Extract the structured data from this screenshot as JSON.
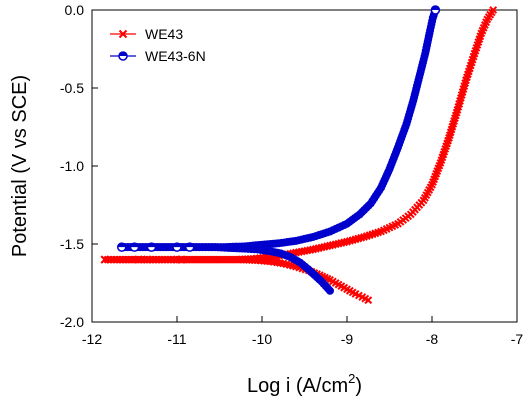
{
  "chart_data": {
    "type": "line",
    "xlabel": "Log i (A/cm",
    "xlabel_sup": "2",
    "xlabel_close": ")",
    "ylabel": "Potential (V vs SCE)",
    "xlim": [
      -12,
      -7
    ],
    "ylim": [
      -2.0,
      0.0
    ],
    "xticks": [
      -12,
      -11,
      -10,
      -9,
      -8,
      -7
    ],
    "yticks": [
      0.0,
      -0.5,
      -1.0,
      -1.5,
      -2.0
    ],
    "xtick_labels": [
      "-12",
      "-11",
      "-10",
      "-9",
      "-8",
      "-7"
    ],
    "ytick_labels": [
      "0.0",
      "-0.5",
      "-1.0",
      "-1.5",
      "-2.0"
    ],
    "legend_position": "top-left",
    "series": [
      {
        "name": "WE43",
        "color": "#ff0000",
        "marker": "x",
        "points": [
          [
            -8.75,
            -1.86
          ],
          [
            -8.82,
            -1.84
          ],
          [
            -8.9,
            -1.82
          ],
          [
            -9.0,
            -1.79
          ],
          [
            -9.1,
            -1.76
          ],
          [
            -9.2,
            -1.73
          ],
          [
            -9.32,
            -1.7
          ],
          [
            -9.45,
            -1.67
          ],
          [
            -9.6,
            -1.645
          ],
          [
            -9.75,
            -1.625
          ],
          [
            -9.9,
            -1.612
          ],
          [
            -10.05,
            -1.605
          ],
          [
            -10.25,
            -1.6
          ],
          [
            -10.5,
            -1.6
          ],
          [
            -10.7,
            -1.6
          ],
          [
            -10.95,
            -1.6
          ],
          [
            -11.0,
            -1.6
          ],
          [
            -11.35,
            -1.6
          ],
          [
            -11.45,
            -1.6
          ],
          [
            -11.85,
            -1.6
          ],
          [
            -10.3,
            -1.6
          ],
          [
            -10.1,
            -1.595
          ],
          [
            -9.95,
            -1.585
          ],
          [
            -9.8,
            -1.575
          ],
          [
            -9.6,
            -1.555
          ],
          [
            -9.4,
            -1.535
          ],
          [
            -9.2,
            -1.51
          ],
          [
            -9.0,
            -1.485
          ],
          [
            -8.8,
            -1.455
          ],
          [
            -8.6,
            -1.42
          ],
          [
            -8.4,
            -1.37
          ],
          [
            -8.25,
            -1.31
          ],
          [
            -8.1,
            -1.22
          ],
          [
            -8.0,
            -1.12
          ],
          [
            -7.9,
            -0.98
          ],
          [
            -7.8,
            -0.82
          ],
          [
            -7.7,
            -0.64
          ],
          [
            -7.6,
            -0.45
          ],
          [
            -7.5,
            -0.28
          ],
          [
            -7.42,
            -0.15
          ],
          [
            -7.35,
            -0.06
          ],
          [
            -7.28,
            0.0
          ]
        ]
      },
      {
        "name": "WE43-6N",
        "color": "#0000cc",
        "marker": "half-circle",
        "points": [
          [
            -9.2,
            -1.8
          ],
          [
            -9.25,
            -1.77
          ],
          [
            -9.3,
            -1.74
          ],
          [
            -9.38,
            -1.7
          ],
          [
            -9.46,
            -1.66
          ],
          [
            -9.55,
            -1.62
          ],
          [
            -9.66,
            -1.585
          ],
          [
            -9.78,
            -1.56
          ],
          [
            -9.92,
            -1.545
          ],
          [
            -10.05,
            -1.535
          ],
          [
            -10.2,
            -1.53
          ],
          [
            -10.4,
            -1.525
          ],
          [
            -10.55,
            -1.52
          ],
          [
            -10.7,
            -1.52
          ],
          [
            -10.85,
            -1.52
          ],
          [
            -11.0,
            -1.52
          ],
          [
            -11.3,
            -1.52
          ],
          [
            -11.5,
            -1.52
          ],
          [
            -11.65,
            -1.52
          ],
          [
            -10.45,
            -1.52
          ],
          [
            -10.2,
            -1.515
          ],
          [
            -10.0,
            -1.505
          ],
          [
            -9.8,
            -1.495
          ],
          [
            -9.6,
            -1.48
          ],
          [
            -9.4,
            -1.455
          ],
          [
            -9.2,
            -1.42
          ],
          [
            -9.0,
            -1.37
          ],
          [
            -8.85,
            -1.31
          ],
          [
            -8.72,
            -1.24
          ],
          [
            -8.6,
            -1.14
          ],
          [
            -8.5,
            -1.02
          ],
          [
            -8.4,
            -0.88
          ],
          [
            -8.3,
            -0.73
          ],
          [
            -8.22,
            -0.58
          ],
          [
            -8.15,
            -0.43
          ],
          [
            -8.08,
            -0.28
          ],
          [
            -8.03,
            -0.15
          ],
          [
            -7.99,
            -0.05
          ],
          [
            -7.96,
            0.0
          ]
        ]
      }
    ]
  }
}
